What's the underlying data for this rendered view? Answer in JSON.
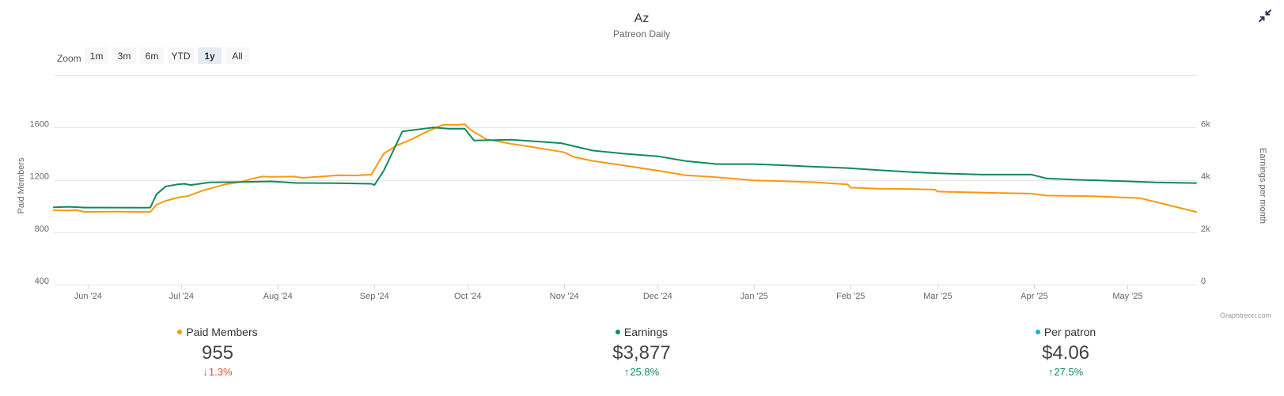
{
  "chart_data": {
    "type": "line",
    "title": "Az",
    "subtitle": "Patreon Daily",
    "x_start": "2024-05-21",
    "x_end": "2025-05-23",
    "xticks": [
      {
        "date": "2024-06-01",
        "label": "Jun '24"
      },
      {
        "date": "2024-07-01",
        "label": "Jul '24"
      },
      {
        "date": "2024-08-01",
        "label": "Aug '24"
      },
      {
        "date": "2024-09-01",
        "label": "Sep '24"
      },
      {
        "date": "2024-10-01",
        "label": "Oct '24"
      },
      {
        "date": "2024-11-01",
        "label": "Nov '24"
      },
      {
        "date": "2024-12-01",
        "label": "Dec '24"
      },
      {
        "date": "2025-01-01",
        "label": "Jan '25"
      },
      {
        "date": "2025-02-01",
        "label": "Feb '25"
      },
      {
        "date": "2025-03-01",
        "label": "Mar '25"
      },
      {
        "date": "2025-04-01",
        "label": "Apr '25"
      },
      {
        "date": "2025-05-01",
        "label": "May '25"
      }
    ],
    "y_left": {
      "title": "Paid Members",
      "range": [
        400,
        2000
      ],
      "ticks": [
        {
          "value": 400,
          "label": "400"
        },
        {
          "value": 800,
          "label": "800"
        },
        {
          "value": 1200,
          "label": "1200"
        },
        {
          "value": 1600,
          "label": "1600"
        }
      ]
    },
    "y_right": {
      "title": "Earnings per month",
      "range": [
        0,
        8000
      ],
      "ticks": [
        {
          "value": 0,
          "label": "0"
        },
        {
          "value": 2000,
          "label": "2k"
        },
        {
          "value": 4000,
          "label": "4k"
        },
        {
          "value": 6000,
          "label": "6k"
        }
      ]
    },
    "series": [
      {
        "name": "Paid Members",
        "axis": "left",
        "color": "#f7990c",
        "points": [
          [
            "2024-05-21",
            967
          ],
          [
            "2024-05-26",
            965
          ],
          [
            "2024-05-28",
            970
          ],
          [
            "2024-05-31",
            955
          ],
          [
            "2024-06-10",
            957
          ],
          [
            "2024-06-19",
            955
          ],
          [
            "2024-06-21",
            955
          ],
          [
            "2024-06-23",
            1010
          ],
          [
            "2024-06-26",
            1040
          ],
          [
            "2024-06-30",
            1065
          ],
          [
            "2024-07-01",
            1070
          ],
          [
            "2024-07-03",
            1075
          ],
          [
            "2024-07-08",
            1120
          ],
          [
            "2024-07-15",
            1165
          ],
          [
            "2024-07-20",
            1183
          ],
          [
            "2024-07-24",
            1210
          ],
          [
            "2024-07-27",
            1225
          ],
          [
            "2024-07-30",
            1223
          ],
          [
            "2024-08-06",
            1225
          ],
          [
            "2024-08-09",
            1215
          ],
          [
            "2024-08-15",
            1225
          ],
          [
            "2024-08-20",
            1235
          ],
          [
            "2024-08-26",
            1233
          ],
          [
            "2024-08-31",
            1240
          ],
          [
            "2024-09-04",
            1400
          ],
          [
            "2024-09-08",
            1460
          ],
          [
            "2024-09-13",
            1510
          ],
          [
            "2024-09-18",
            1570
          ],
          [
            "2024-09-23",
            1620
          ],
          [
            "2024-09-28",
            1620
          ],
          [
            "2024-09-30",
            1625
          ],
          [
            "2024-10-02",
            1580
          ],
          [
            "2024-10-07",
            1510
          ],
          [
            "2024-10-15",
            1475
          ],
          [
            "2024-10-22",
            1450
          ],
          [
            "2024-11-01",
            1410
          ],
          [
            "2024-11-04",
            1375
          ],
          [
            "2024-11-10",
            1345
          ],
          [
            "2024-11-20",
            1310
          ],
          [
            "2024-12-01",
            1270
          ],
          [
            "2024-12-10",
            1235
          ],
          [
            "2024-12-20",
            1220
          ],
          [
            "2025-01-01",
            1195
          ],
          [
            "2025-01-10",
            1190
          ],
          [
            "2025-01-20",
            1182
          ],
          [
            "2025-01-31",
            1165
          ],
          [
            "2025-02-01",
            1140
          ],
          [
            "2025-02-10",
            1132
          ],
          [
            "2025-02-20",
            1130
          ],
          [
            "2025-02-28",
            1125
          ],
          [
            "2025-03-01",
            1110
          ],
          [
            "2025-03-20",
            1100
          ],
          [
            "2025-03-31",
            1095
          ],
          [
            "2025-04-05",
            1080
          ],
          [
            "2025-04-20",
            1075
          ],
          [
            "2025-04-30",
            1065
          ],
          [
            "2025-05-05",
            1060
          ],
          [
            "2025-05-23",
            955
          ]
        ]
      },
      {
        "name": "Earnings",
        "axis": "right",
        "color": "#118a5a",
        "points": [
          [
            "2024-05-21",
            2950
          ],
          [
            "2024-05-26",
            2970
          ],
          [
            "2024-05-31",
            2940
          ],
          [
            "2024-06-19",
            2935
          ],
          [
            "2024-06-21",
            2940
          ],
          [
            "2024-06-23",
            3450
          ],
          [
            "2024-06-26",
            3750
          ],
          [
            "2024-06-30",
            3830
          ],
          [
            "2024-07-02",
            3850
          ],
          [
            "2024-07-04",
            3800
          ],
          [
            "2024-07-10",
            3900
          ],
          [
            "2024-07-20",
            3920
          ],
          [
            "2024-07-30",
            3940
          ],
          [
            "2024-08-07",
            3880
          ],
          [
            "2024-08-20",
            3870
          ],
          [
            "2024-08-31",
            3850
          ],
          [
            "2024-09-01",
            3800
          ],
          [
            "2024-09-04",
            4350
          ],
          [
            "2024-09-10",
            5850
          ],
          [
            "2024-09-20",
            6000
          ],
          [
            "2024-09-25",
            5950
          ],
          [
            "2024-09-30",
            5950
          ],
          [
            "2024-10-03",
            5500
          ],
          [
            "2024-10-15",
            5530
          ],
          [
            "2024-10-31",
            5400
          ],
          [
            "2024-11-10",
            5120
          ],
          [
            "2024-11-20",
            5000
          ],
          [
            "2024-12-01",
            4900
          ],
          [
            "2024-12-10",
            4720
          ],
          [
            "2024-12-20",
            4600
          ],
          [
            "2025-01-01",
            4600
          ],
          [
            "2025-01-10",
            4560
          ],
          [
            "2025-01-20",
            4500
          ],
          [
            "2025-01-31",
            4450
          ],
          [
            "2025-02-10",
            4370
          ],
          [
            "2025-02-20",
            4300
          ],
          [
            "2025-03-01",
            4250
          ],
          [
            "2025-03-15",
            4200
          ],
          [
            "2025-03-31",
            4200
          ],
          [
            "2025-04-05",
            4050
          ],
          [
            "2025-04-15",
            4000
          ],
          [
            "2025-04-30",
            3950
          ],
          [
            "2025-05-10",
            3900
          ],
          [
            "2025-05-23",
            3877
          ]
        ]
      }
    ],
    "legend": "bottom-center",
    "grid": true
  },
  "zoom": {
    "label": "Zoom",
    "buttons": [
      "1m",
      "3m",
      "6m",
      "YTD",
      "1y",
      "All"
    ],
    "selected": "1y"
  },
  "credits": "Graphtreon.com",
  "stats": [
    {
      "key": "members",
      "label": "Paid Members",
      "value": "955",
      "change": "1.3%",
      "direction": "down",
      "dot_color": "#f7990c"
    },
    {
      "key": "earnings",
      "label": "Earnings",
      "value": "$3,877",
      "change": "25.8%",
      "direction": "up",
      "dot_color": "#118a5a"
    },
    {
      "key": "per-patron",
      "label": "Per patron",
      "value": "$4.06",
      "change": "27.5%",
      "direction": "up",
      "dot_color": "#1aa7e8"
    }
  ],
  "colors": {
    "up": "#0c8a56",
    "down": "#e0502e",
    "gridline": "#e6e6e6"
  }
}
